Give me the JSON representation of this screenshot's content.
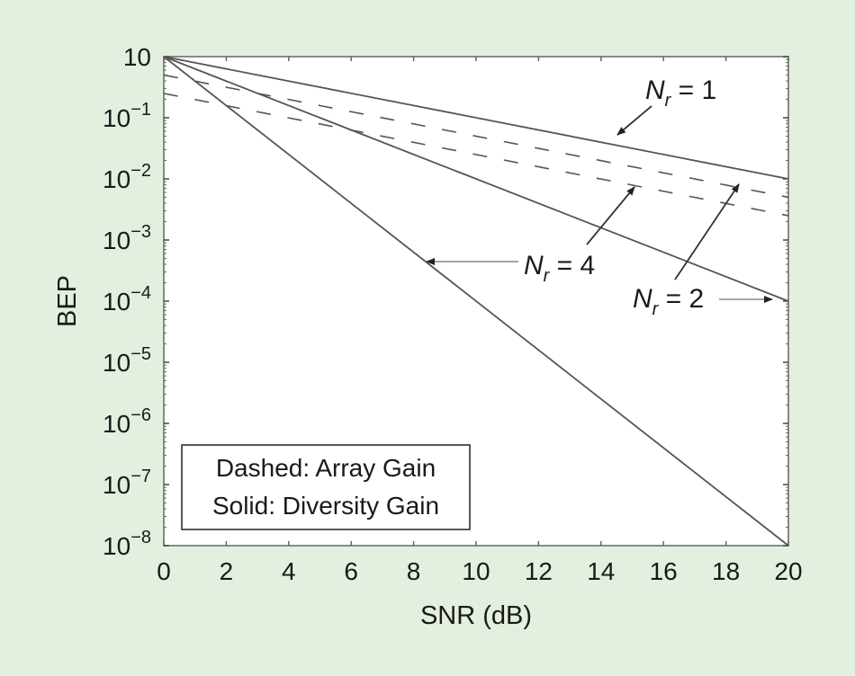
{
  "chart_data": {
    "type": "line",
    "title": "",
    "xlabel": "SNR (dB)",
    "ylabel": "BEP",
    "xlim": [
      0,
      20
    ],
    "ylim": [
      1e-08,
      1
    ],
    "yscale": "log",
    "grid": false,
    "x_ticks": [
      0,
      2,
      4,
      6,
      8,
      10,
      12,
      14,
      16,
      18,
      20
    ],
    "x_tick_labels": [
      "0",
      "2",
      "4",
      "6",
      "8",
      "10",
      "12",
      "14",
      "16",
      "18",
      "20"
    ],
    "y_ticks": [
      1,
      0.1,
      0.01,
      0.001,
      0.0001,
      1e-05,
      1e-06,
      1e-07,
      1e-08
    ],
    "y_tick_labels": [
      {
        "base": "10",
        "exp": ""
      },
      {
        "base": "10",
        "exp": "−1"
      },
      {
        "base": "10",
        "exp": "−2"
      },
      {
        "base": "10",
        "exp": "−3"
      },
      {
        "base": "10",
        "exp": "−4"
      },
      {
        "base": "10",
        "exp": "−5"
      },
      {
        "base": "10",
        "exp": "−6"
      },
      {
        "base": "10",
        "exp": "−7"
      },
      {
        "base": "10",
        "exp": "−8"
      }
    ],
    "x": [
      0,
      20
    ],
    "series": [
      {
        "name": "Nr = 1 (solid)",
        "style": "solid",
        "values": [
          1,
          0.01
        ]
      },
      {
        "name": "Nr = 2 (solid, diversity gain)",
        "style": "solid",
        "values": [
          1,
          0.0001
        ]
      },
      {
        "name": "Nr = 4 (solid, diversity gain)",
        "style": "solid",
        "values": [
          1,
          1e-08
        ]
      },
      {
        "name": "Nr = 2 (dashed, array gain)",
        "style": "dashed",
        "values": [
          0.5,
          0.005
        ]
      },
      {
        "name": "Nr = 4 (dashed, array gain)",
        "style": "dashed",
        "values": [
          0.25,
          0.0025
        ]
      }
    ],
    "legend": {
      "position": "lower-left",
      "entries": [
        "Dashed: Array Gain",
        "Solid: Diversity Gain"
      ]
    },
    "annotations": [
      {
        "label_main": "N",
        "label_sub": "r",
        "label_rest": " = 1",
        "target": "Nr = 1 solid"
      },
      {
        "label_main": "N",
        "label_sub": "r",
        "label_rest": " = 4",
        "target": "Nr = 4 solid and Nr = 4 dashed"
      },
      {
        "label_main": "N",
        "label_sub": "r",
        "label_rest": " = 2",
        "target": "Nr = 2 solid and Nr = 2 dashed"
      }
    ]
  },
  "colors": {
    "background": "#e3f0df",
    "plot_bg": "#ffffff",
    "line": "#555555",
    "text": "#1a1a1a"
  }
}
